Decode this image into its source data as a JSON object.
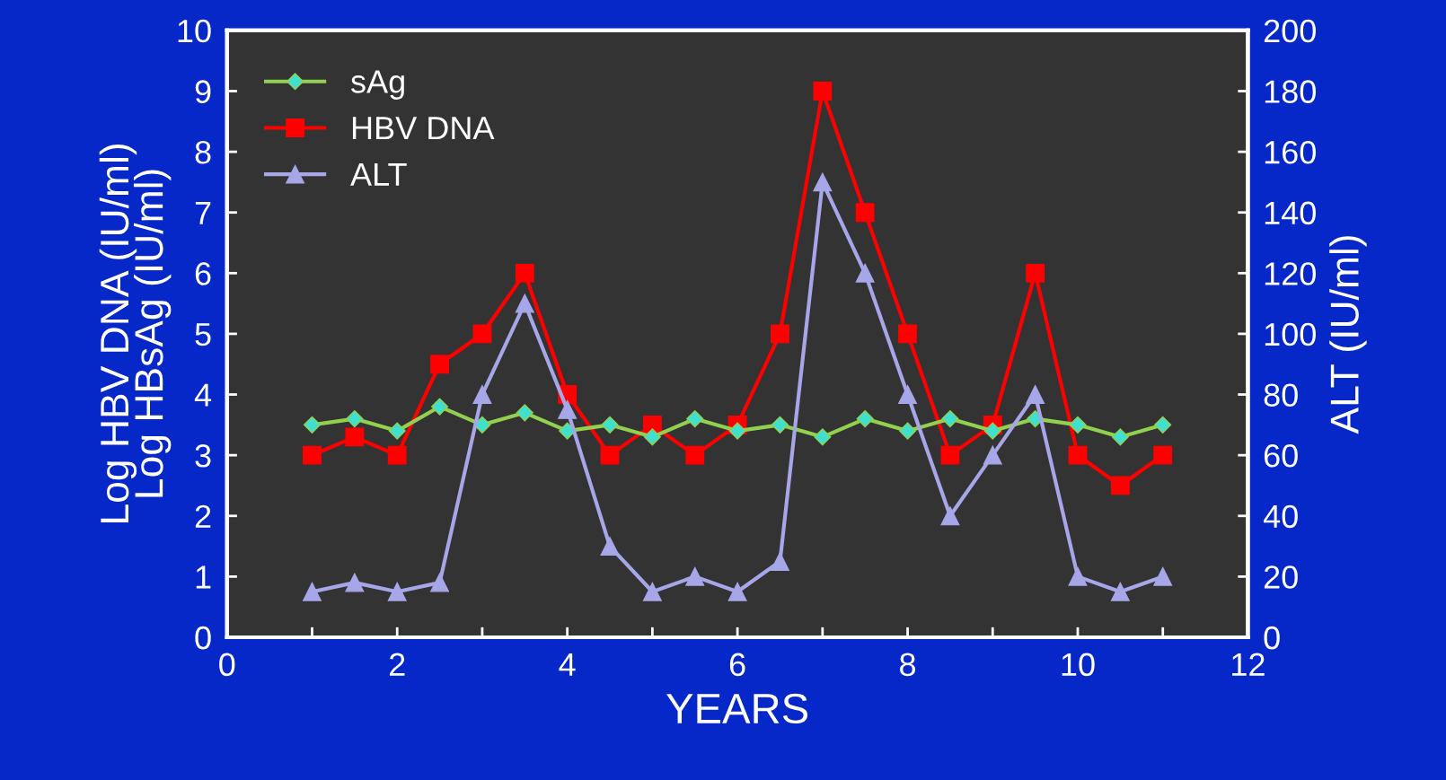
{
  "chart_data": {
    "type": "line",
    "xlabel": "YEARS",
    "ylabel": "Log HBV DNA (IU/ml)\nLog HBsAg (IU/ml)",
    "y2label": "ALT (IU/ml)",
    "x": [
      1,
      1.5,
      2,
      2.5,
      3,
      3.5,
      4,
      4.5,
      5,
      5.5,
      6,
      6.5,
      7,
      7.5,
      8,
      8.5,
      9,
      9.5,
      10,
      10.5,
      11
    ],
    "series": [
      {
        "name": "sAg",
        "color": "#92d050",
        "marker": "diamond",
        "values": [
          3.5,
          3.6,
          3.4,
          3.8,
          3.5,
          3.7,
          3.4,
          3.5,
          3.3,
          3.6,
          3.4,
          3.5,
          3.3,
          3.6,
          3.4,
          3.6,
          3.4,
          3.6,
          3.5,
          3.3,
          3.5
        ]
      },
      {
        "name": "HBV DNA",
        "color": "#ff0000",
        "marker": "square",
        "values": [
          3,
          3.3,
          3,
          4.5,
          5,
          6,
          4,
          3,
          3.5,
          3,
          3.5,
          5,
          9,
          7,
          5,
          3,
          3.5,
          6,
          3,
          2.5,
          3
        ]
      },
      {
        "name": "ALT",
        "color": "#a6a6e8",
        "marker": "triangle",
        "axis": "y2",
        "values": [
          15,
          18,
          15,
          18,
          80,
          110,
          75,
          30,
          15,
          20,
          15,
          25,
          150,
          120,
          80,
          40,
          60,
          80,
          20,
          15,
          20
        ]
      }
    ],
    "xlim": [
      0,
      12
    ],
    "xticks": [
      0,
      {
        "value": 1,
        "label": null
      },
      2,
      {
        "value": 3,
        "label": null
      },
      4,
      {
        "value": 5,
        "label": null
      },
      6,
      {
        "value": 7,
        "label": null
      },
      8,
      {
        "value": 9,
        "label": null
      },
      10,
      {
        "value": 11,
        "label": null
      },
      12
    ],
    "ylim": [
      0,
      10
    ],
    "yticks": [
      0,
      1,
      2,
      3,
      4,
      5,
      6,
      7,
      8,
      9,
      10
    ],
    "y2lim": [
      0,
      200
    ],
    "y2ticks": [
      0,
      20,
      40,
      60,
      80,
      100,
      120,
      140,
      160,
      180,
      200
    ],
    "legend": "top left",
    "grid": false,
    "line_style": "solid"
  }
}
